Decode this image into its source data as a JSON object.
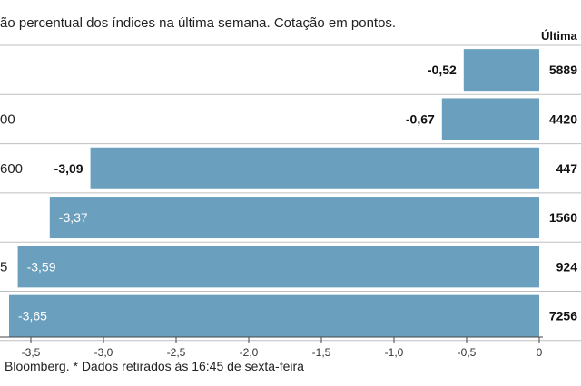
{
  "subtitle": "ão percentual dos índices na última semana. Cotação em pontos.",
  "source_note": "Bloomberg.  * Dados retirados às 16:45 de sexta-feira",
  "chart_data": {
    "type": "bar",
    "orientation": "horizontal",
    "categories": [
      "",
      "00",
      "600",
      "",
      "5",
      ""
    ],
    "values": [
      -0.52,
      -0.67,
      -3.09,
      -3.37,
      -3.59,
      -3.65
    ],
    "value_labels": [
      "-0,52",
      "-0,67",
      "-3,09",
      "-3,37",
      "-3,59",
      "-3,65"
    ],
    "last_value_header": "Última c",
    "last_values": [
      "5889",
      "4420",
      "447",
      "1560",
      "924",
      "7256"
    ],
    "x_ticks": [
      {
        "value": -3.5,
        "label": "-3,5"
      },
      {
        "value": -3.0,
        "label": "-3,0"
      },
      {
        "value": -2.5,
        "label": "-2,5"
      },
      {
        "value": -2.0,
        "label": "-2,0"
      },
      {
        "value": -1.5,
        "label": "-1,5"
      },
      {
        "value": -1.0,
        "label": "-1,0"
      },
      {
        "value": -0.5,
        "label": "-0,5"
      },
      {
        "value": 0,
        "label": "0"
      }
    ],
    "xlim": [
      -3.7,
      0
    ],
    "bar_color": "#6a9fbd",
    "grid": false
  }
}
